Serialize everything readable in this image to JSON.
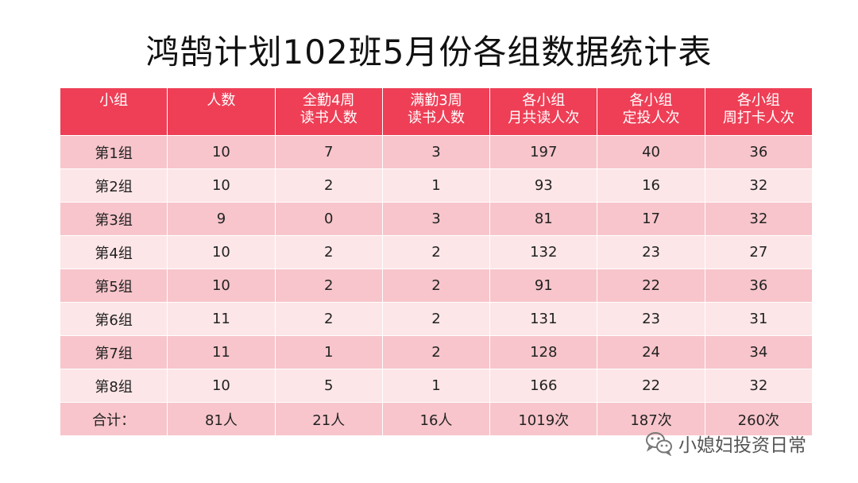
{
  "title": "鸿鹄计划102班5月份各组数据统计表",
  "colors": {
    "header_bg": "#ee3f56",
    "row_dark": "#f7c5cb",
    "row_light": "#fde6e8"
  },
  "table": {
    "headers": [
      [
        "小组"
      ],
      [
        "人数"
      ],
      [
        "全勤4周",
        "读书人数"
      ],
      [
        "满勤3周",
        "读书人数"
      ],
      [
        "各小组",
        "月共读人次"
      ],
      [
        "各小组",
        "定投人次"
      ],
      [
        "各小组",
        "周打卡人次"
      ]
    ],
    "rows": [
      [
        "第1组",
        "10",
        "7",
        "3",
        "197",
        "40",
        "36"
      ],
      [
        "第2组",
        "10",
        "2",
        "1",
        "93",
        "16",
        "32"
      ],
      [
        "第3组",
        "9",
        "0",
        "3",
        "81",
        "17",
        "32"
      ],
      [
        "第4组",
        "10",
        "2",
        "2",
        "132",
        "23",
        "27"
      ],
      [
        "第5组",
        "10",
        "2",
        "2",
        "91",
        "22",
        "36"
      ],
      [
        "第6组",
        "11",
        "2",
        "2",
        "131",
        "23",
        "31"
      ],
      [
        "第7组",
        "11",
        "1",
        "2",
        "128",
        "24",
        "34"
      ],
      [
        "第8组",
        "10",
        "5",
        "1",
        "166",
        "22",
        "32"
      ]
    ],
    "total": [
      "合计：",
      "81人",
      "21人",
      "16人",
      "1019次",
      "187次",
      "260次"
    ]
  },
  "watermark": {
    "text": "小媳妇投资日常",
    "icon": "wechat-icon"
  }
}
